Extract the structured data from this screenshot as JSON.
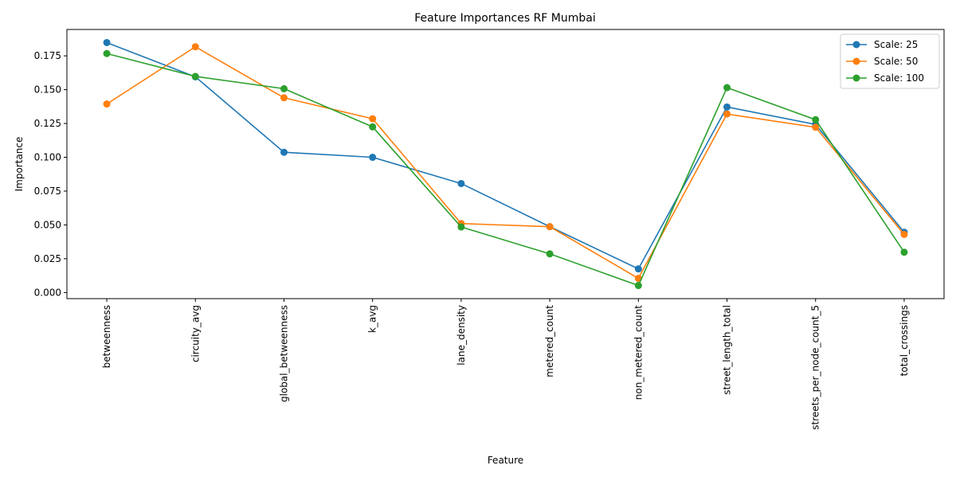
{
  "chart_data": {
    "type": "line",
    "title": "Feature Importances RF Mumbai",
    "xlabel": "Feature",
    "ylabel": "Importance",
    "categories": [
      "betweenness",
      "circuity_avg",
      "global_betweenness",
      "k_avg",
      "lane_density",
      "metered_count",
      "non_metered_count",
      "street_length_total",
      "streets_per_node_count_5",
      "total_crossings"
    ],
    "ylim": [
      -0.0045,
      0.1945
    ],
    "yticks": [
      0.0,
      0.025,
      0.05,
      0.075,
      0.1,
      0.125,
      0.15,
      0.175
    ],
    "ytick_labels": [
      "0.000",
      "0.025",
      "0.050",
      "0.075",
      "0.100",
      "0.125",
      "0.150",
      "0.175"
    ],
    "grid": false,
    "legend_position": "top-right",
    "series": [
      {
        "name": "Scale: 25",
        "color": "#1f77b4",
        "values": [
          0.1848,
          0.1595,
          0.1037,
          0.1,
          0.0806,
          0.0487,
          0.0175,
          0.1372,
          0.1243,
          0.0446
        ]
      },
      {
        "name": "Scale: 50",
        "color": "#ff7f0e",
        "values": [
          0.1394,
          0.1817,
          0.144,
          0.1285,
          0.051,
          0.0487,
          0.0105,
          0.132,
          0.1222,
          0.043
        ]
      },
      {
        "name": "Scale: 100",
        "color": "#2ca02c",
        "values": [
          0.1767,
          0.1598,
          0.1507,
          0.1225,
          0.0485,
          0.0286,
          0.0052,
          0.1515,
          0.1278,
          0.0298
        ]
      }
    ]
  }
}
